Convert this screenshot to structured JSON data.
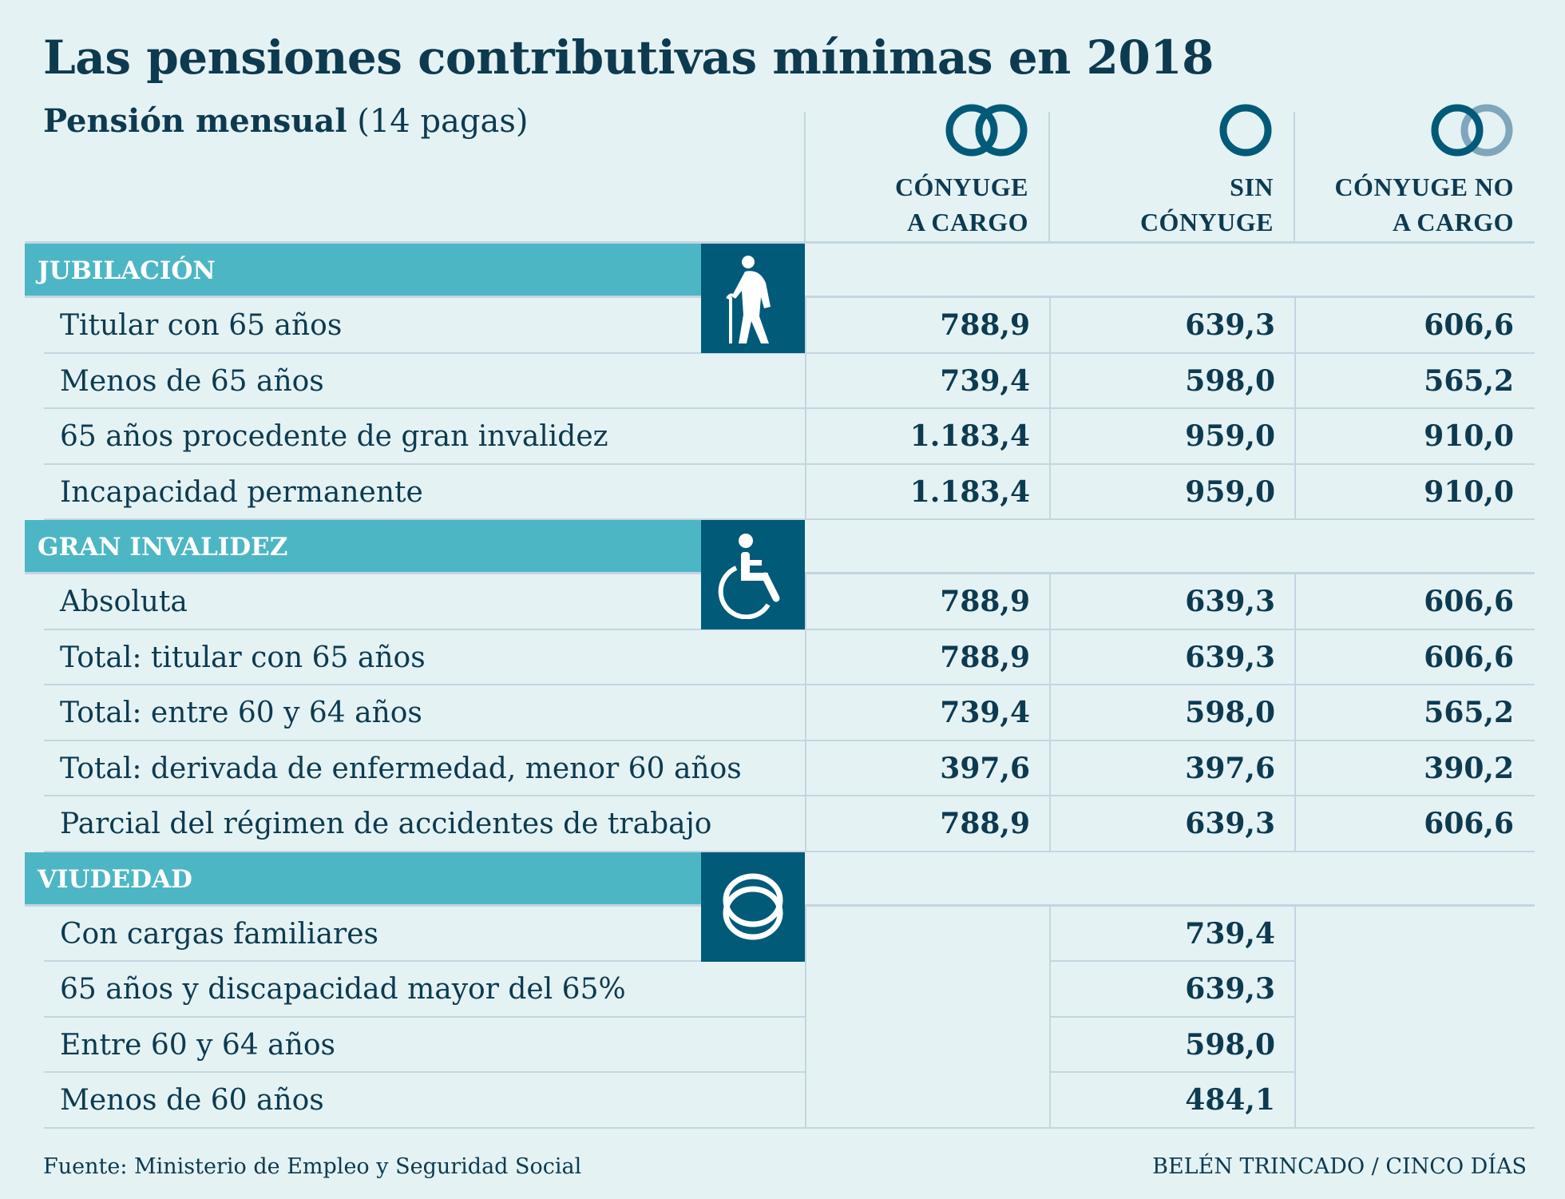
{
  "chart_data": {
    "type": "table",
    "title": "Las pensiones contributivas mínimas en 2018",
    "subtitle_bold": "Pensión mensual",
    "subtitle_rest": " (14 pagas)",
    "columns": [
      {
        "line1": "CÓNYUGE",
        "line2": "A CARGO",
        "icon": "two-rings-icon"
      },
      {
        "line1": "SIN",
        "line2": "CÓNYUGE",
        "icon": "single-ring-icon"
      },
      {
        "line1": "CÓNYUGE NO",
        "line2": "A CARGO",
        "icon": "two-rings-one-faded-icon"
      }
    ],
    "sections": [
      {
        "name": "JUBILACIÓN",
        "icon": "elderly-person-icon",
        "rows": [
          {
            "label": "Titular con 65 años",
            "values": [
              "788,9",
              "639,3",
              "606,6"
            ]
          },
          {
            "label": "Menos de 65 años",
            "values": [
              "739,4",
              "598,0",
              "565,2"
            ]
          },
          {
            "label": "65 años procedente de gran invalidez",
            "values": [
              "1.183,4",
              "959,0",
              "910,0"
            ]
          },
          {
            "label": "Incapacidad permanente",
            "values": [
              "1.183,4",
              "959,0",
              "910,0"
            ]
          }
        ]
      },
      {
        "name": "GRAN INVALIDEZ",
        "icon": "wheelchair-icon",
        "rows": [
          {
            "label": "Absoluta",
            "values": [
              "788,9",
              "639,3",
              "606,6"
            ]
          },
          {
            "label": "Total: titular con 65 años",
            "values": [
              "788,9",
              "639,3",
              "606,6"
            ]
          },
          {
            "label": "Total: entre 60 y 64 años",
            "values": [
              "739,4",
              "598,0",
              "565,2"
            ]
          },
          {
            "label": "Total: derivada de enfermedad, menor 60 años",
            "values": [
              "397,6",
              "397,6",
              "390,2"
            ]
          },
          {
            "label": "Parcial del régimen de accidentes de trabajo",
            "values": [
              "788,9",
              "639,3",
              "606,6"
            ]
          }
        ]
      },
      {
        "name": "VIUDEDAD",
        "icon": "wedding-rings-icon",
        "rows": [
          {
            "label": "Con cargas familiares",
            "values": [
              null,
              "739,4",
              null
            ]
          },
          {
            "label": "65 años y discapacidad mayor del 65%",
            "values": [
              null,
              "639,3",
              null
            ]
          },
          {
            "label": "Entre 60 y 64 años",
            "values": [
              null,
              "598,0",
              null
            ]
          },
          {
            "label": "Menos de 60 años",
            "values": [
              null,
              "484,1",
              null
            ]
          }
        ]
      }
    ],
    "source": "Fuente: Ministerio de Empleo y Seguridad Social",
    "credit": "BELÉN TRINCADO / CINCO DÍAS"
  },
  "colors": {
    "text": "#0d3a4f",
    "section_bar": "#4db6c4",
    "icon_box": "#005a78",
    "background": "#e4f2f4",
    "grid": "#c3d6e0",
    "faded_ring": "#7fa6bb"
  }
}
